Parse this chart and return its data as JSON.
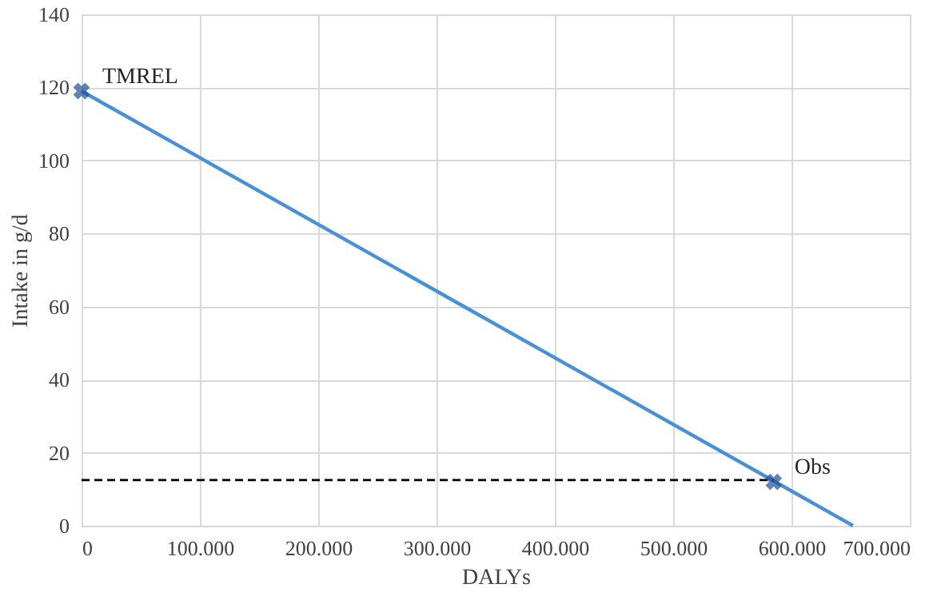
{
  "chart_data": {
    "type": "line",
    "xlabel": "DALYs",
    "ylabel": "Intake in g/d",
    "xlim": [
      0,
      700000
    ],
    "ylim": [
      0,
      140
    ],
    "xticks": [
      0,
      {
        "value": 100000,
        "label": "100.000"
      },
      {
        "value": 200000,
        "label": "200.000"
      },
      {
        "value": 300000,
        "label": "300.000"
      },
      {
        "value": 400000,
        "label": "400.000"
      },
      {
        "value": 500000,
        "label": "500.000"
      },
      {
        "value": 600000,
        "label": "600.000"
      },
      {
        "value": 700000,
        "label": "700.000"
      }
    ],
    "yticks": [
      0,
      20,
      40,
      60,
      80,
      100,
      120,
      140
    ],
    "grid": true,
    "series": [
      {
        "color": "#4a90d4",
        "x": [
          0,
          652000
        ],
        "values": [
          119,
          0
        ],
        "marker": "none",
        "line_style": "solid"
      },
      {
        "color": "#000000",
        "x": [
          0,
          585000
        ],
        "values": [
          12.5,
          12.5
        ],
        "marker": "none",
        "line_style": "dashed"
      },
      {
        "type": "scatter",
        "color": "#1f4e96",
        "x": [
          0,
          585000
        ],
        "values": [
          119,
          12
        ],
        "marker": "cross"
      }
    ],
    "annotations": [
      {
        "text": "TMREL",
        "x": 0,
        "y": 119
      },
      {
        "text": "Obs",
        "x": 585000,
        "y": 12
      }
    ]
  }
}
